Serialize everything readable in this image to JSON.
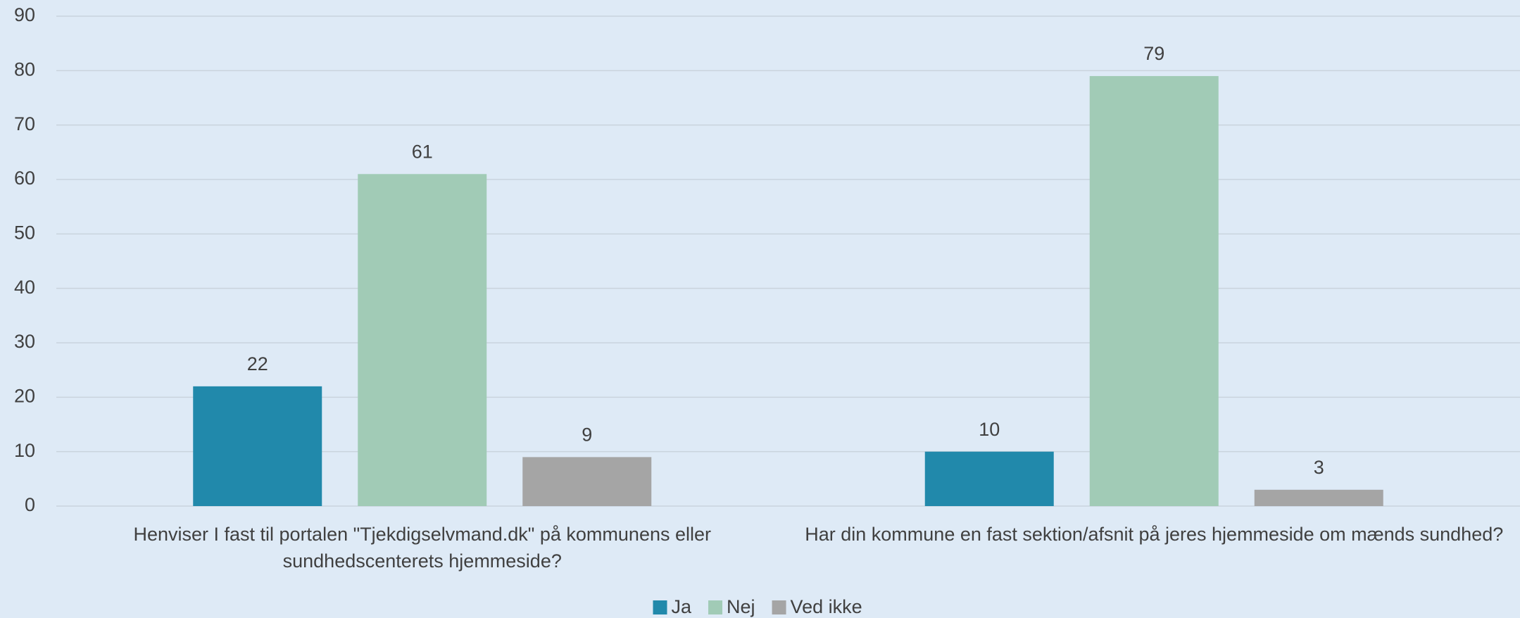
{
  "chart_data": {
    "type": "bar",
    "categories": [
      "Henviser I fast til portalen \"Tjekdigselvmand.dk\" på kommunens eller sundhedscenterets hjemmeside?",
      "Har din kommune en fast sektion/afsnit på jeres hjemmeside om mænds sundhed?"
    ],
    "series": [
      {
        "name": "Ja",
        "color": "#2189ab",
        "values": [
          22,
          10
        ]
      },
      {
        "name": "Nej",
        "color": "#a1cbb6",
        "values": [
          61,
          79
        ]
      },
      {
        "name": "Ved ikke",
        "color": "#a5a5a5",
        "values": [
          9,
          3
        ]
      }
    ],
    "ylim": [
      0,
      90
    ],
    "yticks": [
      0,
      10,
      20,
      30,
      40,
      50,
      60,
      70,
      80,
      90
    ],
    "grid": true,
    "legend": "bottom"
  }
}
